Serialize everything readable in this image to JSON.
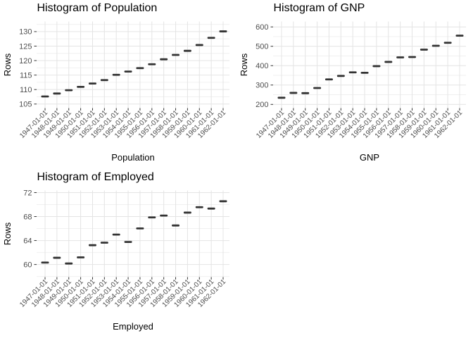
{
  "page": {
    "background": "#ffffff"
  },
  "colors": {
    "plot_title": "#000000",
    "axis_title": "#000000",
    "tick_label": "#4d4d4d",
    "grid_major": "#e4e4e4",
    "grid_minor": "#f0f0f0",
    "tick_mark": "#333333",
    "mark": "#333333",
    "background": "#ffffff"
  },
  "chart_data": [
    {
      "type": "scatter",
      "marker": "horizontal-dash",
      "title": "Histogram of Population",
      "xlabel": "Population",
      "ylabel": "Rows",
      "legend": "none",
      "grid": "on",
      "categories": [
        "1947-01-01",
        "1948-01-01",
        "1949-01-01",
        "1950-01-01",
        "1951-01-01",
        "1952-01-01",
        "1953-01-01",
        "1954-01-01",
        "1955-01-01",
        "1956-01-01",
        "1957-01-01",
        "1958-01-01",
        "1959-01-01",
        "1960-01-01",
        "1961-01-01",
        "1962-01-01"
      ],
      "values": [
        107.608,
        108.632,
        109.773,
        110.929,
        112.075,
        113.27,
        115.094,
        116.219,
        117.388,
        118.734,
        120.445,
        121.95,
        123.366,
        125.368,
        127.852,
        130.081
      ],
      "yticks": [
        105,
        110,
        115,
        120,
        125,
        130
      ],
      "yminor": [
        107.5,
        112.5,
        117.5,
        122.5,
        127.5,
        132.5
      ],
      "ylim": [
        103.6,
        133.5
      ],
      "position": {
        "row": 0,
        "col": 0
      }
    },
    {
      "type": "scatter",
      "marker": "horizontal-dash",
      "title": "Histogram of GNP",
      "xlabel": "GNP",
      "ylabel": "Rows",
      "legend": "none",
      "grid": "on",
      "categories": [
        "1947-01-01",
        "1948-01-01",
        "1949-01-01",
        "1950-01-01",
        "1951-01-01",
        "1952-01-01",
        "1953-01-01",
        "1954-01-01",
        "1955-01-01",
        "1956-01-01",
        "1957-01-01",
        "1958-01-01",
        "1959-01-01",
        "1960-01-01",
        "1961-01-01",
        "1962-01-01"
      ],
      "values": [
        234.289,
        259.426,
        258.054,
        284.599,
        328.975,
        346.999,
        365.385,
        363.112,
        397.469,
        419.18,
        442.769,
        444.546,
        482.704,
        502.601,
        518.173,
        554.894
      ],
      "yticks": [
        200,
        300,
        400,
        500,
        600
      ],
      "yminor": [
        250,
        350,
        450,
        550
      ],
      "ylim": [
        181,
        628
      ],
      "position": {
        "row": 0,
        "col": 1
      }
    },
    {
      "type": "scatter",
      "marker": "horizontal-dash",
      "title": "Histogram of Employed",
      "xlabel": "Employed",
      "ylabel": "Rows",
      "legend": "none",
      "grid": "on",
      "categories": [
        "1947-01-01",
        "1948-01-01",
        "1949-01-01",
        "1950-01-01",
        "1951-01-01",
        "1952-01-01",
        "1953-01-01",
        "1954-01-01",
        "1955-01-01",
        "1956-01-01",
        "1957-01-01",
        "1958-01-01",
        "1959-01-01",
        "1960-01-01",
        "1961-01-01",
        "1962-01-01"
      ],
      "values": [
        60.323,
        61.122,
        60.171,
        61.187,
        63.221,
        63.639,
        64.989,
        63.761,
        66.019,
        67.857,
        68.169,
        66.513,
        68.655,
        69.564,
        69.331,
        70.551
      ],
      "yticks": [
        60,
        64,
        68,
        72
      ],
      "yminor": [
        58,
        62,
        66,
        70
      ],
      "ylim": [
        57.9,
        72.35
      ],
      "position": {
        "row": 1,
        "col": 0
      }
    }
  ]
}
